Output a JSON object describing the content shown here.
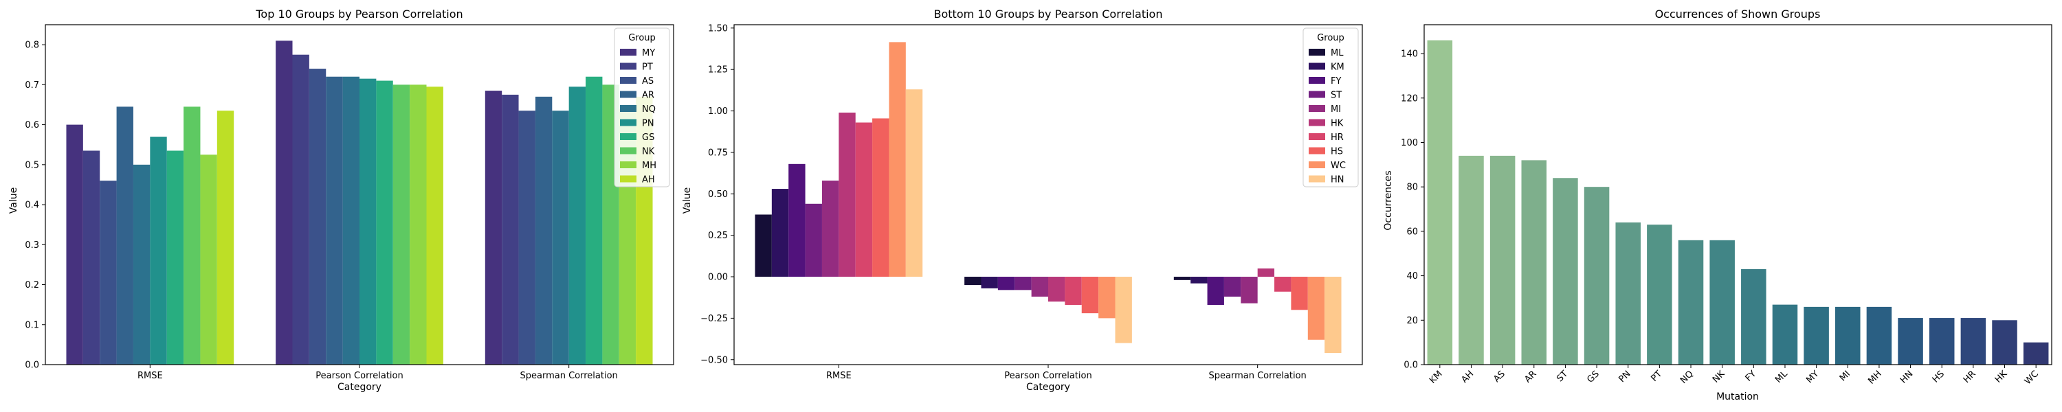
{
  "chart_data": [
    {
      "type": "bar",
      "title": "Top 10 Groups by Pearson Correlation",
      "xlabel": "Category",
      "ylabel": "Value",
      "categories": [
        "RMSE",
        "Pearson Correlation",
        "Spearman Correlation"
      ],
      "ylim": [
        0,
        0.85
      ],
      "yticks": [
        0.0,
        0.1,
        0.2,
        0.3,
        0.4,
        0.5,
        0.6,
        0.7,
        0.8
      ],
      "legend_title": "Group",
      "legend_position": "upper right",
      "grid": false,
      "series": [
        {
          "name": "MY",
          "color": "#46327e",
          "values": [
            0.6,
            0.81,
            0.685
          ]
        },
        {
          "name": "PT",
          "color": "#424086",
          "values": [
            0.535,
            0.775,
            0.675
          ]
        },
        {
          "name": "AS",
          "color": "#3b528b",
          "values": [
            0.46,
            0.74,
            0.635
          ]
        },
        {
          "name": "AR",
          "color": "#33638d",
          "values": [
            0.645,
            0.72,
            0.67
          ]
        },
        {
          "name": "NQ",
          "color": "#2c728e",
          "values": [
            0.5,
            0.72,
            0.635
          ]
        },
        {
          "name": "PN",
          "color": "#21918c",
          "values": [
            0.57,
            0.715,
            0.695
          ]
        },
        {
          "name": "GS",
          "color": "#28ae80",
          "values": [
            0.535,
            0.71,
            0.72
          ]
        },
        {
          "name": "NK",
          "color": "#5ec962",
          "values": [
            0.645,
            0.7,
            0.7
          ]
        },
        {
          "name": "MH",
          "color": "#90d743",
          "values": [
            0.525,
            0.7,
            0.64
          ]
        },
        {
          "name": "AH",
          "color": "#bddf26",
          "values": [
            0.635,
            0.695,
            0.67
          ]
        }
      ]
    },
    {
      "type": "bar",
      "title": "Bottom 10 Groups by Pearson Correlation",
      "xlabel": "Category",
      "ylabel": "Value",
      "categories": [
        "RMSE",
        "Pearson Correlation",
        "Spearman Correlation"
      ],
      "ylim": [
        -0.53,
        1.52
      ],
      "yticks": [
        -0.5,
        -0.25,
        0.0,
        0.25,
        0.5,
        0.75,
        1.0,
        1.25,
        1.5
      ],
      "ytick_labels": [
        "−0.50",
        "−0.25",
        "0.00",
        "0.25",
        "0.50",
        "0.75",
        "1.00",
        "1.25",
        "1.50"
      ],
      "legend_title": "Group",
      "legend_position": "upper right",
      "grid": false,
      "series": [
        {
          "name": "ML",
          "color": "#150e37",
          "values": [
            0.375,
            -0.05,
            -0.02
          ]
        },
        {
          "name": "KM",
          "color": "#2d1160",
          "values": [
            0.53,
            -0.07,
            -0.04
          ]
        },
        {
          "name": "FY",
          "color": "#51127c",
          "values": [
            0.68,
            -0.08,
            -0.17
          ]
        },
        {
          "name": "ST",
          "color": "#721f81",
          "values": [
            0.44,
            -0.08,
            -0.12
          ]
        },
        {
          "name": "MI",
          "color": "#942c80",
          "values": [
            0.58,
            -0.12,
            -0.16
          ]
        },
        {
          "name": "HK",
          "color": "#b73779",
          "values": [
            0.99,
            -0.15,
            0.05
          ]
        },
        {
          "name": "HR",
          "color": "#d8456c",
          "values": [
            0.93,
            -0.17,
            -0.09
          ]
        },
        {
          "name": "HS",
          "color": "#f1605d",
          "values": [
            0.955,
            -0.22,
            -0.2
          ]
        },
        {
          "name": "WC",
          "color": "#fc9366",
          "values": [
            1.415,
            -0.25,
            -0.38
          ]
        },
        {
          "name": "HN",
          "color": "#fec98d",
          "values": [
            1.13,
            -0.4,
            -0.46
          ]
        }
      ]
    },
    {
      "type": "bar",
      "title": "Occurrences of Shown Groups",
      "xlabel": "Mutation",
      "ylabel": "Occurrences",
      "categories": [
        "KM",
        "AH",
        "AS",
        "AR",
        "ST",
        "GS",
        "PN",
        "PT",
        "NQ",
        "NK",
        "FY",
        "ML",
        "MY",
        "MI",
        "MH",
        "HN",
        "HS",
        "HR",
        "HK",
        "WC"
      ],
      "values": [
        146,
        94,
        94,
        92,
        84,
        80,
        64,
        63,
        56,
        56,
        43,
        27,
        26,
        26,
        26,
        21,
        21,
        21,
        20,
        10
      ],
      "colors": [
        "#9ac593",
        "#91bd91",
        "#88b68e",
        "#7eaf8c",
        "#74a88b",
        "#6ba28a",
        "#5f9a89",
        "#539487",
        "#4b8c87",
        "#418586",
        "#3a7e86",
        "#327685",
        "#2e6f84",
        "#2b6883",
        "#2a5f83",
        "#2a5781",
        "#2c4f7f",
        "#2e477c",
        "#303f77",
        "#313872"
      ],
      "ylim": [
        0,
        153
      ],
      "yticks": [
        0,
        20,
        40,
        60,
        80,
        100,
        120,
        140
      ],
      "grid": false
    }
  ]
}
